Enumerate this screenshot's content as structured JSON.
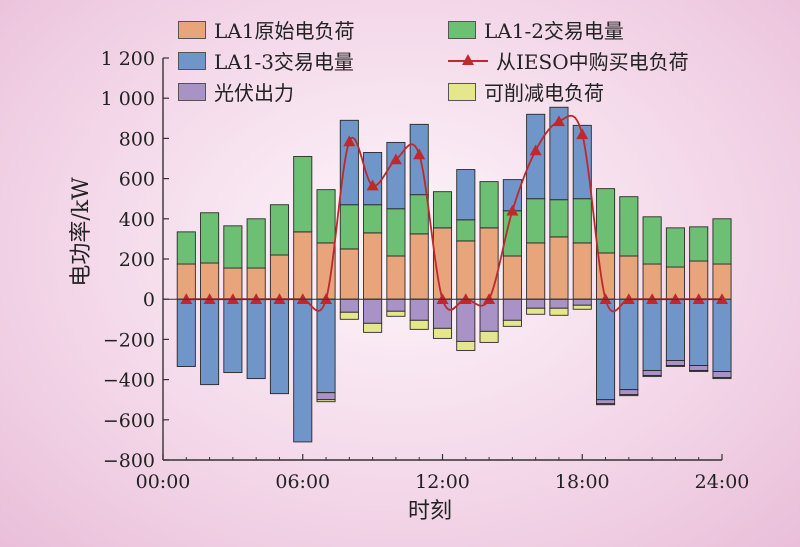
{
  "chart_data": {
    "type": "bar",
    "xlabel": "时刻",
    "ylabel": "电功率/kW",
    "ylim": [
      -800,
      1200
    ],
    "xlim": [
      0,
      24
    ],
    "xticks": [
      "00:00",
      "06:00",
      "12:00",
      "18:00",
      "24:00"
    ],
    "yticks": [
      "−800",
      "−600",
      "−400",
      "−200",
      "0",
      "200",
      "400",
      "600",
      "800",
      "1 000",
      "1 200"
    ],
    "categories": [
      1,
      2,
      3,
      4,
      5,
      6,
      7,
      8,
      9,
      10,
      11,
      12,
      13,
      14,
      15,
      16,
      17,
      18,
      19,
      20,
      21,
      22,
      23,
      24
    ],
    "series": [
      {
        "name": "LA1原始电负荷",
        "color": "#e8a47a",
        "values": [
          175,
          180,
          155,
          155,
          220,
          335,
          280,
          250,
          330,
          215,
          325,
          355,
          290,
          355,
          215,
          280,
          310,
          280,
          230,
          215,
          175,
          160,
          190,
          175
        ]
      },
      {
        "name": "LA1-2交易电量",
        "color": "#6cbf73",
        "values": [
          160,
          250,
          210,
          245,
          250,
          375,
          265,
          220,
          140,
          235,
          195,
          180,
          105,
          230,
          225,
          220,
          185,
          220,
          320,
          295,
          235,
          195,
          170,
          225
        ]
      },
      {
        "name": "LA1-3交易电量",
        "color": "#6f95c9",
        "values": [
          -335,
          -425,
          -365,
          -395,
          -470,
          -710,
          -465,
          420,
          260,
          330,
          350,
          0,
          250,
          0,
          155,
          420,
          460,
          365,
          -500,
          -450,
          -355,
          -305,
          -330,
          -360
        ]
      },
      {
        "name": "光伏出力",
        "color": "#a892c6",
        "values": [
          0,
          0,
          0,
          0,
          0,
          0,
          -35,
          -65,
          -120,
          -60,
          -105,
          -145,
          -210,
          -160,
          -105,
          -45,
          -45,
          -30,
          -20,
          -25,
          -25,
          -25,
          -25,
          -30
        ]
      },
      {
        "name": "可削减电负荷",
        "color": "#e6e68c",
        "values": [
          0,
          0,
          0,
          0,
          0,
          0,
          -10,
          -35,
          -45,
          -25,
          -45,
          -50,
          -45,
          -55,
          -30,
          -30,
          -35,
          -20,
          -5,
          -5,
          -5,
          -5,
          -5,
          -5
        ]
      }
    ],
    "line_series": {
      "name": "从IESO中购买电负荷",
      "color": "#c0282b",
      "values": [
        0,
        0,
        0,
        0,
        0,
        0,
        0,
        785,
        565,
        695,
        720,
        0,
        0,
        0,
        440,
        740,
        885,
        820,
        0,
        0,
        0,
        0,
        0,
        0
      ]
    },
    "legend_placement": "top"
  }
}
